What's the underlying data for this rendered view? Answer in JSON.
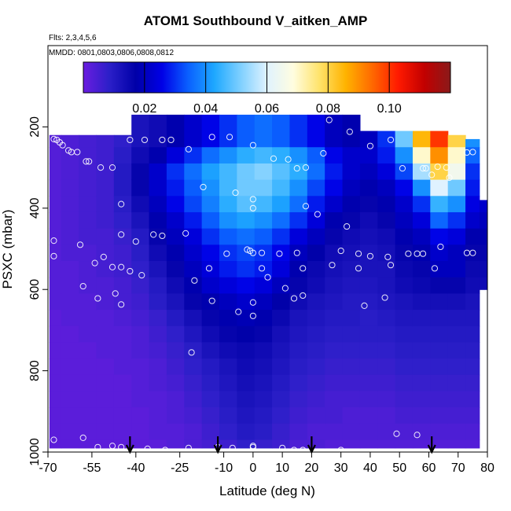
{
  "chart_data": {
    "type": "heatmap",
    "title": "ATOM1 Southbound V_aitken_AMP",
    "subtitle_lines": [
      "Flts: 2,3,4,5,6",
      "MMDD: 0801,0803,0806,0808,0812"
    ],
    "xlabel": "Latitude (deg N)",
    "ylabel": "PSXC (mbar)",
    "xlim": [
      -70,
      80
    ],
    "ylim": [
      1000,
      0
    ],
    "x_ticks": [
      -70,
      -55,
      -40,
      -25,
      -10,
      0,
      10,
      20,
      30,
      40,
      50,
      60,
      70,
      80
    ],
    "x_tick_labels": [
      "-70",
      "-55",
      "-40",
      "-25",
      "-10",
      "0",
      "10",
      "20",
      "30",
      "40",
      "50",
      "60",
      "70",
      "80"
    ],
    "y_ticks": [
      200,
      400,
      600,
      800,
      1000
    ],
    "y_tick_labels": [
      "200",
      "400",
      "600",
      "800",
      "1000"
    ],
    "colorbar": {
      "range": [
        0,
        0.12
      ],
      "ticks": [
        0.02,
        0.04,
        0.06,
        0.08,
        0.1
      ],
      "tick_labels": [
        "0.02",
        "0.04",
        "0.06",
        "0.08",
        "0.10"
      ],
      "colors": [
        "#6a1de0",
        "#2b1fc8",
        "#0000a8",
        "#0000e6",
        "#0a60ff",
        "#1ea8ff",
        "#7fd0ff",
        "#dff2ff",
        "#fffde0",
        "#ffe36b",
        "#ffb300",
        "#ff6a00",
        "#ff1a00",
        "#c20000",
        "#8a1a1a"
      ]
    },
    "grid": {
      "x": [
        -68.5,
        -62.5,
        -56.5,
        -50.5,
        -44.5,
        -38.5,
        -32.5,
        -26.5,
        -20.5,
        -14.5,
        -8.5,
        -2.5,
        3.5,
        9.5,
        15.5,
        21.5,
        27.5,
        33.5,
        39.5,
        45.5,
        51.5,
        57.5,
        63.5,
        69.5,
        75.5,
        79
      ],
      "y": [
        210,
        250,
        290,
        330,
        370,
        410,
        450,
        490,
        530,
        570,
        610,
        650,
        690,
        730,
        770,
        810,
        850,
        890,
        930,
        970,
        1000
      ],
      "values": [
        [
          0.003,
          0.004,
          0.005,
          0.006,
          0.008,
          0.012,
          0.014,
          0.018,
          0.022,
          0.026,
          0.03,
          0.034,
          0.036,
          0.034,
          0.03,
          0.026,
          0.02,
          0.018,
          0.02,
          0.03,
          0.05,
          0.085,
          0.1,
          0.08,
          0.04,
          0.03
        ],
        [
          0.003,
          0.004,
          0.005,
          0.006,
          0.009,
          0.014,
          0.018,
          0.024,
          0.03,
          0.036,
          0.04,
          0.044,
          0.046,
          0.044,
          0.04,
          0.034,
          0.026,
          0.022,
          0.022,
          0.028,
          0.04,
          0.07,
          0.09,
          0.07,
          0.035,
          0.03
        ],
        [
          0.003,
          0.004,
          0.005,
          0.006,
          0.01,
          0.016,
          0.022,
          0.03,
          0.036,
          0.042,
          0.046,
          0.05,
          0.052,
          0.048,
          0.044,
          0.036,
          0.028,
          0.022,
          0.02,
          0.024,
          0.032,
          0.055,
          0.08,
          0.065,
          0.03,
          0.028
        ],
        [
          0.003,
          0.004,
          0.005,
          0.006,
          0.01,
          0.016,
          0.022,
          0.028,
          0.034,
          0.04,
          0.046,
          0.05,
          0.05,
          0.046,
          0.04,
          0.032,
          0.026,
          0.02,
          0.018,
          0.02,
          0.026,
          0.04,
          0.06,
          0.05,
          0.028,
          0.025
        ],
        [
          0.003,
          0.004,
          0.005,
          0.006,
          0.009,
          0.014,
          0.02,
          0.026,
          0.032,
          0.038,
          0.044,
          0.048,
          0.046,
          0.042,
          0.036,
          0.028,
          0.022,
          0.018,
          0.016,
          0.018,
          0.022,
          0.03,
          0.045,
          0.04,
          0.025,
          0.022
        ],
        [
          0.003,
          0.004,
          0.005,
          0.006,
          0.008,
          0.012,
          0.018,
          0.022,
          0.028,
          0.034,
          0.04,
          0.042,
          0.04,
          0.036,
          0.03,
          0.024,
          0.018,
          0.016,
          0.014,
          0.016,
          0.02,
          0.024,
          0.035,
          0.03,
          0.022,
          0.02
        ],
        [
          0.003,
          0.004,
          0.005,
          0.005,
          0.007,
          0.01,
          0.016,
          0.02,
          0.024,
          0.03,
          0.034,
          0.036,
          0.034,
          0.03,
          0.024,
          0.02,
          0.016,
          0.014,
          0.013,
          0.014,
          0.018,
          0.02,
          0.026,
          0.024,
          0.018,
          0.018
        ],
        [
          0.003,
          0.004,
          0.004,
          0.005,
          0.006,
          0.009,
          0.014,
          0.018,
          0.022,
          0.026,
          0.03,
          0.032,
          0.03,
          0.026,
          0.02,
          0.017,
          0.014,
          0.013,
          0.012,
          0.013,
          0.016,
          0.018,
          0.022,
          0.02,
          0.016,
          0.016
        ],
        [
          0.003,
          0.003,
          0.004,
          0.005,
          0.006,
          0.008,
          0.012,
          0.016,
          0.02,
          0.024,
          0.028,
          0.03,
          0.028,
          0.024,
          0.018,
          0.015,
          0.013,
          0.012,
          0.012,
          0.012,
          0.015,
          0.016,
          0.02,
          0.02,
          0.015,
          0.015
        ],
        [
          0.003,
          0.003,
          0.004,
          0.004,
          0.005,
          0.007,
          0.01,
          0.014,
          0.018,
          0.022,
          0.024,
          0.026,
          0.024,
          0.02,
          0.016,
          0.014,
          0.012,
          0.011,
          0.011,
          0.012,
          0.014,
          0.015,
          0.016,
          0.016,
          0.014,
          0.014
        ],
        [
          0.003,
          0.003,
          0.003,
          0.004,
          0.005,
          0.006,
          0.009,
          0.012,
          0.016,
          0.018,
          0.02,
          0.022,
          0.02,
          0.017,
          0.014,
          0.012,
          0.011,
          0.01,
          0.01,
          0.011,
          0.012,
          0.013,
          0.013,
          0.013,
          0.012,
          0.012
        ],
        [
          0.002,
          0.003,
          0.003,
          0.003,
          0.004,
          0.005,
          0.007,
          0.01,
          0.013,
          0.016,
          0.018,
          0.019,
          0.018,
          0.015,
          0.012,
          0.011,
          0.01,
          0.01,
          0.009,
          0.01,
          0.011,
          0.011,
          0.011,
          0.011,
          0.011,
          0.011
        ],
        [
          0.002,
          0.002,
          0.003,
          0.003,
          0.003,
          0.004,
          0.006,
          0.008,
          0.011,
          0.014,
          0.016,
          0.017,
          0.016,
          0.013,
          0.011,
          0.01,
          0.009,
          0.009,
          0.009,
          0.009,
          0.01,
          0.01,
          0.01,
          0.01,
          0.01,
          0.01
        ],
        [
          0.002,
          0.002,
          0.002,
          0.003,
          0.003,
          0.004,
          0.005,
          0.007,
          0.009,
          0.012,
          0.014,
          0.015,
          0.014,
          0.012,
          0.01,
          0.009,
          0.008,
          0.008,
          0.008,
          0.008,
          0.009,
          0.009,
          0.009,
          0.009,
          0.009,
          0.009
        ],
        [
          0.002,
          0.002,
          0.002,
          0.002,
          0.003,
          0.003,
          0.004,
          0.006,
          0.008,
          0.01,
          0.012,
          0.014,
          0.013,
          0.011,
          0.009,
          0.008,
          0.007,
          0.007,
          0.007,
          0.007,
          0.008,
          0.008,
          0.008,
          0.008,
          0.008,
          0.008
        ],
        [
          0.002,
          0.002,
          0.002,
          0.002,
          0.002,
          0.003,
          0.004,
          0.005,
          0.007,
          0.009,
          0.011,
          0.013,
          0.012,
          0.01,
          0.008,
          0.007,
          0.006,
          0.006,
          0.006,
          0.006,
          0.007,
          0.007,
          0.007,
          0.007,
          0.007,
          0.007
        ],
        [
          0.002,
          0.002,
          0.002,
          0.002,
          0.002,
          0.003,
          0.003,
          0.004,
          0.006,
          0.008,
          0.01,
          0.012,
          0.011,
          0.009,
          0.007,
          0.006,
          0.005,
          0.005,
          0.005,
          0.005,
          0.006,
          0.006,
          0.006,
          0.006,
          0.006,
          0.006
        ],
        [
          0.002,
          0.002,
          0.002,
          0.002,
          0.002,
          0.002,
          0.003,
          0.004,
          0.005,
          0.007,
          0.009,
          0.011,
          0.01,
          0.008,
          0.006,
          0.005,
          0.005,
          0.004,
          0.004,
          0.004,
          0.005,
          0.005,
          0.005,
          0.005,
          0.005,
          0.005
        ],
        [
          0.002,
          0.002,
          0.002,
          0.002,
          0.002,
          0.002,
          0.003,
          0.003,
          0.004,
          0.006,
          0.008,
          0.01,
          0.009,
          0.007,
          0.005,
          0.004,
          0.004,
          0.004,
          0.004,
          0.004,
          0.004,
          0.004,
          0.004,
          0.004,
          0.004,
          0.004
        ],
        [
          0.002,
          0.002,
          0.002,
          0.002,
          0.002,
          0.002,
          0.002,
          0.003,
          0.004,
          0.005,
          0.006,
          0.008,
          0.007,
          0.006,
          0.004,
          0.004,
          0.003,
          0.003,
          0.003,
          0.003,
          0.003,
          0.003,
          0.003,
          0.003,
          0.003,
          0.003
        ]
      ],
      "top_pressure_by_column": [
        220,
        220,
        220,
        220,
        220,
        170,
        170,
        170,
        170,
        170,
        170,
        170,
        170,
        170,
        170,
        170,
        170,
        170,
        210,
        210,
        210,
        210,
        210,
        220,
        230,
        380
      ],
      "bottom_pressure_by_column": [
        990,
        990,
        990,
        990,
        990,
        990,
        990,
        990,
        990,
        990,
        990,
        990,
        990,
        990,
        990,
        990,
        990,
        990,
        990,
        990,
        990,
        990,
        990,
        990,
        990,
        600
      ]
    },
    "observation_points": [
      {
        "lat": -68,
        "p": 230
      },
      {
        "lat": -67,
        "p": 232
      },
      {
        "lat": -66,
        "p": 238
      },
      {
        "lat": -65,
        "p": 245
      },
      {
        "lat": -63,
        "p": 258
      },
      {
        "lat": -62,
        "p": 262
      },
      {
        "lat": -60,
        "p": 262
      },
      {
        "lat": -57,
        "p": 285
      },
      {
        "lat": -56,
        "p": 285
      },
      {
        "lat": -52,
        "p": 300
      },
      {
        "lat": -48,
        "p": 300
      },
      {
        "lat": -45,
        "p": 200
      },
      {
        "lat": -42,
        "p": 232
      },
      {
        "lat": -37,
        "p": 232
      },
      {
        "lat": -31,
        "p": 232
      },
      {
        "lat": -28,
        "p": 232
      },
      {
        "lat": -22,
        "p": 255
      },
      {
        "lat": -14,
        "p": 225
      },
      {
        "lat": -8,
        "p": 225
      },
      {
        "lat": 0,
        "p": 245
      },
      {
        "lat": 7,
        "p": 278
      },
      {
        "lat": 12,
        "p": 280
      },
      {
        "lat": 15,
        "p": 302
      },
      {
        "lat": 18,
        "p": 300
      },
      {
        "lat": 24,
        "p": 265
      },
      {
        "lat": 26,
        "p": 183
      },
      {
        "lat": 33,
        "p": 212
      },
      {
        "lat": 40,
        "p": 247
      },
      {
        "lat": 47,
        "p": 232
      },
      {
        "lat": 51,
        "p": 302
      },
      {
        "lat": 58,
        "p": 302
      },
      {
        "lat": 59,
        "p": 302
      },
      {
        "lat": 61,
        "p": 318
      },
      {
        "lat": 63,
        "p": 298
      },
      {
        "lat": 66,
        "p": 300
      },
      {
        "lat": 67,
        "p": 325
      },
      {
        "lat": 73,
        "p": 263
      },
      {
        "lat": 75,
        "p": 262
      },
      {
        "lat": -17,
        "p": 348
      },
      {
        "lat": -6,
        "p": 362
      },
      {
        "lat": 0,
        "p": 378
      },
      {
        "lat": 0,
        "p": 400
      },
      {
        "lat": 18,
        "p": 395
      },
      {
        "lat": 22,
        "p": 415
      },
      {
        "lat": 32,
        "p": 445
      },
      {
        "lat": -45,
        "p": 390
      },
      {
        "lat": -45,
        "p": 465
      },
      {
        "lat": -34,
        "p": 465
      },
      {
        "lat": -31,
        "p": 468
      },
      {
        "lat": -23,
        "p": 462
      },
      {
        "lat": -40,
        "p": 482
      },
      {
        "lat": -68,
        "p": 480
      },
      {
        "lat": -59,
        "p": 490
      },
      {
        "lat": -68,
        "p": 518
      },
      {
        "lat": -51,
        "p": 520
      },
      {
        "lat": -48,
        "p": 545
      },
      {
        "lat": -45,
        "p": 545
      },
      {
        "lat": -42,
        "p": 555
      },
      {
        "lat": -38,
        "p": 565
      },
      {
        "lat": -54,
        "p": 535
      },
      {
        "lat": -9,
        "p": 512
      },
      {
        "lat": -2,
        "p": 502
      },
      {
        "lat": -1,
        "p": 505
      },
      {
        "lat": 0,
        "p": 510
      },
      {
        "lat": 3,
        "p": 510
      },
      {
        "lat": 9,
        "p": 512
      },
      {
        "lat": 15,
        "p": 510
      },
      {
        "lat": 30,
        "p": 505
      },
      {
        "lat": 36,
        "p": 512
      },
      {
        "lat": 40,
        "p": 518
      },
      {
        "lat": 46,
        "p": 520
      },
      {
        "lat": 53,
        "p": 512
      },
      {
        "lat": 56,
        "p": 512
      },
      {
        "lat": 58,
        "p": 512
      },
      {
        "lat": 64,
        "p": 495
      },
      {
        "lat": 73,
        "p": 510
      },
      {
        "lat": 75,
        "p": 510
      },
      {
        "lat": -15,
        "p": 548
      },
      {
        "lat": 3,
        "p": 548
      },
      {
        "lat": 17,
        "p": 548
      },
      {
        "lat": 27,
        "p": 540
      },
      {
        "lat": 36,
        "p": 548
      },
      {
        "lat": 47,
        "p": 540
      },
      {
        "lat": 62,
        "p": 548
      },
      {
        "lat": -20,
        "p": 578
      },
      {
        "lat": 5,
        "p": 570
      },
      {
        "lat": -58,
        "p": 592
      },
      {
        "lat": -53,
        "p": 622
      },
      {
        "lat": -47,
        "p": 610
      },
      {
        "lat": -45,
        "p": 637
      },
      {
        "lat": -14,
        "p": 628
      },
      {
        "lat": -5,
        "p": 655
      },
      {
        "lat": 0,
        "p": 632
      },
      {
        "lat": 0,
        "p": 665
      },
      {
        "lat": 11,
        "p": 597
      },
      {
        "lat": 14,
        "p": 622
      },
      {
        "lat": 17,
        "p": 615
      },
      {
        "lat": 38,
        "p": 640
      },
      {
        "lat": 45,
        "p": 620
      },
      {
        "lat": 79,
        "p": 660
      },
      {
        "lat": -21,
        "p": 755
      },
      {
        "lat": -68,
        "p": 970
      },
      {
        "lat": -58,
        "p": 965
      },
      {
        "lat": -53,
        "p": 988
      },
      {
        "lat": -48,
        "p": 985
      },
      {
        "lat": -45,
        "p": 988
      },
      {
        "lat": -36,
        "p": 992
      },
      {
        "lat": -30,
        "p": 995
      },
      {
        "lat": -22,
        "p": 990
      },
      {
        "lat": -12,
        "p": 988
      },
      {
        "lat": -7,
        "p": 990
      },
      {
        "lat": 0,
        "p": 988
      },
      {
        "lat": 0,
        "p": 985
      },
      {
        "lat": 10,
        "p": 990
      },
      {
        "lat": 14,
        "p": 995
      },
      {
        "lat": 17,
        "p": 995
      },
      {
        "lat": 30,
        "p": 995
      },
      {
        "lat": 37,
        "p": 1010
      },
      {
        "lat": 43,
        "p": 1008
      },
      {
        "lat": 49,
        "p": 955
      },
      {
        "lat": 56,
        "p": 958
      },
      {
        "lat": 79,
        "p": 965
      }
    ],
    "arrows_lat": [
      -42,
      -12,
      20,
      61
    ]
  }
}
